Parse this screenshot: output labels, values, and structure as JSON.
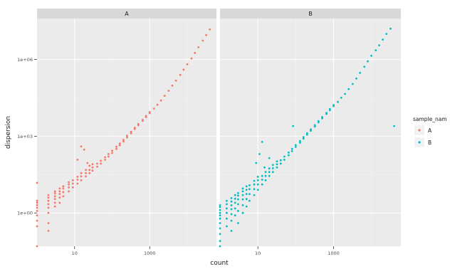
{
  "chart_data": {
    "type": "scatter",
    "facet_by": "sample_name",
    "xlabel": "count",
    "ylabel": "dispersion",
    "x_scale": "log10",
    "y_scale": "log10",
    "x_ticks": [
      10,
      1000
    ],
    "x_tick_labels": [
      "10",
      "1000"
    ],
    "y_ticks": [
      1,
      1000,
      1000000
    ],
    "y_tick_labels": [
      "1e+00",
      "1e+03",
      "1e+06"
    ],
    "xlim": [
      1,
      60000
    ],
    "ylim": [
      0.05,
      40000000
    ],
    "grid": true,
    "legend": {
      "title": "sample_nam",
      "position": "right",
      "entries": [
        {
          "label": "A",
          "color": "#F8766D"
        },
        {
          "label": "B",
          "color": "#00BFC4"
        }
      ]
    },
    "panels": [
      {
        "strip": "A",
        "color": "#F8766D",
        "points": [
          {
            "x": 1.0,
            "y": 0.3
          },
          {
            "x": 1.0,
            "y": 0.5
          },
          {
            "x": 1.0,
            "y": 0.8
          },
          {
            "x": 1.0,
            "y": 1.2
          },
          {
            "x": 1.0,
            "y": 1.6
          },
          {
            "x": 1.0,
            "y": 2.0
          },
          {
            "x": 1.0,
            "y": 2.5
          },
          {
            "x": 1.0,
            "y": 3.0
          },
          {
            "x": 1.0,
            "y": 15
          },
          {
            "x": 1.0,
            "y": 0.05
          },
          {
            "x": 2.0,
            "y": 0.4
          },
          {
            "x": 2.0,
            "y": 1.0
          },
          {
            "x": 2.0,
            "y": 1.6
          },
          {
            "x": 2.0,
            "y": 2.2
          },
          {
            "x": 2.0,
            "y": 3.0
          },
          {
            "x": 2.0,
            "y": 4.0
          },
          {
            "x": 2.0,
            "y": 5.0
          },
          {
            "x": 2.0,
            "y": 0.2
          },
          {
            "x": 3.0,
            "y": 1.8
          },
          {
            "x": 3.0,
            "y": 2.5
          },
          {
            "x": 3.0,
            "y": 3.5
          },
          {
            "x": 3.0,
            "y": 4.5
          },
          {
            "x": 3.0,
            "y": 5.8
          },
          {
            "x": 3.0,
            "y": 7.0
          },
          {
            "x": 4.0,
            "y": 2.5
          },
          {
            "x": 4.0,
            "y": 4.0
          },
          {
            "x": 4.0,
            "y": 5.5
          },
          {
            "x": 4.0,
            "y": 7.0
          },
          {
            "x": 4.0,
            "y": 9.0
          },
          {
            "x": 5.0,
            "y": 4.5
          },
          {
            "x": 5.0,
            "y": 6.5
          },
          {
            "x": 5.0,
            "y": 9.0
          },
          {
            "x": 5.0,
            "y": 11
          },
          {
            "x": 7.0,
            "y": 7.0
          },
          {
            "x": 7.0,
            "y": 10
          },
          {
            "x": 7.0,
            "y": 13
          },
          {
            "x": 7.0,
            "y": 16
          },
          {
            "x": 9.0,
            "y": 10
          },
          {
            "x": 9.0,
            "y": 14
          },
          {
            "x": 9.0,
            "y": 19
          },
          {
            "x": 12,
            "y": 14
          },
          {
            "x": 12,
            "y": 20
          },
          {
            "x": 12,
            "y": 26
          },
          {
            "x": 15,
            "y": 19
          },
          {
            "x": 15,
            "y": 27
          },
          {
            "x": 15,
            "y": 36
          },
          {
            "x": 20,
            "y": 27
          },
          {
            "x": 20,
            "y": 36
          },
          {
            "x": 20,
            "y": 48
          },
          {
            "x": 25,
            "y": 36
          },
          {
            "x": 25,
            "y": 48
          },
          {
            "x": 25,
            "y": 70
          },
          {
            "x": 30,
            "y": 45
          },
          {
            "x": 30,
            "y": 60
          },
          {
            "x": 30,
            "y": 80
          },
          {
            "x": 40,
            "y": 65
          },
          {
            "x": 40,
            "y": 85
          },
          {
            "x": 50,
            "y": 85
          },
          {
            "x": 50,
            "y": 110
          },
          {
            "x": 65,
            "y": 120
          },
          {
            "x": 65,
            "y": 150
          },
          {
            "x": 80,
            "y": 160
          },
          {
            "x": 80,
            "y": 200
          },
          {
            "x": 100,
            "y": 220
          },
          {
            "x": 100,
            "y": 270
          },
          {
            "x": 130,
            "y": 320
          },
          {
            "x": 130,
            "y": 390
          },
          {
            "x": 160,
            "y": 440
          },
          {
            "x": 160,
            "y": 520
          },
          {
            "x": 200,
            "y": 620
          },
          {
            "x": 200,
            "y": 720
          },
          {
            "x": 250,
            "y": 900
          },
          {
            "x": 250,
            "y": 1050
          },
          {
            "x": 320,
            "y": 1300
          },
          {
            "x": 320,
            "y": 1500
          },
          {
            "x": 400,
            "y": 1900
          },
          {
            "x": 400,
            "y": 2150
          },
          {
            "x": 500,
            "y": 2700
          },
          {
            "x": 500,
            "y": 3000
          },
          {
            "x": 650,
            "y": 4000
          },
          {
            "x": 650,
            "y": 4400
          },
          {
            "x": 800,
            "y": 5600
          },
          {
            "x": 800,
            "y": 6200
          },
          {
            "x": 1000,
            "y": 8000
          },
          {
            "x": 1000,
            "y": 8800
          },
          {
            "x": 1300,
            "y": 12000
          },
          {
            "x": 1600,
            "y": 17000
          },
          {
            "x": 2000,
            "y": 25000
          },
          {
            "x": 2500,
            "y": 38000
          },
          {
            "x": 3200,
            "y": 60000
          },
          {
            "x": 4000,
            "y": 95000
          },
          {
            "x": 5000,
            "y": 150000
          },
          {
            "x": 6500,
            "y": 250000
          },
          {
            "x": 8000,
            "y": 400000
          },
          {
            "x": 10000,
            "y": 650000
          },
          {
            "x": 13000,
            "y": 1100000
          },
          {
            "x": 16000,
            "y": 1800000
          },
          {
            "x": 20000,
            "y": 3000000
          },
          {
            "x": 26000,
            "y": 5500000
          },
          {
            "x": 32000,
            "y": 9000000
          },
          {
            "x": 40000,
            "y": 15000000
          },
          {
            "x": 15,
            "y": 400
          },
          {
            "x": 18,
            "y": 300
          },
          {
            "x": 12,
            "y": 120
          },
          {
            "x": 22,
            "y": 90
          }
        ]
      },
      {
        "strip": "B",
        "color": "#00BFC4",
        "points": [
          {
            "x": 1.0,
            "y": 0.08
          },
          {
            "x": 1.0,
            "y": 0.15
          },
          {
            "x": 1.0,
            "y": 0.25
          },
          {
            "x": 1.0,
            "y": 0.4
          },
          {
            "x": 1.0,
            "y": 0.6
          },
          {
            "x": 1.0,
            "y": 0.8
          },
          {
            "x": 1.0,
            "y": 1.0
          },
          {
            "x": 1.0,
            "y": 1.3
          },
          {
            "x": 1.0,
            "y": 1.7
          },
          {
            "x": 1.0,
            "y": 2.0
          },
          {
            "x": 1.0,
            "y": 0.05
          },
          {
            "x": 1.5,
            "y": 0.3
          },
          {
            "x": 1.5,
            "y": 0.6
          },
          {
            "x": 1.5,
            "y": 1.0
          },
          {
            "x": 1.5,
            "y": 1.5
          },
          {
            "x": 1.5,
            "y": 2.2
          },
          {
            "x": 1.5,
            "y": 3.0
          },
          {
            "x": 2.0,
            "y": 0.2
          },
          {
            "x": 2.0,
            "y": 0.5
          },
          {
            "x": 2.0,
            "y": 0.9
          },
          {
            "x": 2.0,
            "y": 1.4
          },
          {
            "x": 2.0,
            "y": 2.0
          },
          {
            "x": 2.0,
            "y": 2.8
          },
          {
            "x": 2.0,
            "y": 3.8
          },
          {
            "x": 2.5,
            "y": 0.8
          },
          {
            "x": 2.5,
            "y": 1.5
          },
          {
            "x": 2.5,
            "y": 2.5
          },
          {
            "x": 2.5,
            "y": 3.6
          },
          {
            "x": 2.5,
            "y": 5.0
          },
          {
            "x": 3.0,
            "y": 0.4
          },
          {
            "x": 3.0,
            "y": 1.2
          },
          {
            "x": 3.0,
            "y": 2.2
          },
          {
            "x": 3.0,
            "y": 3.4
          },
          {
            "x": 3.0,
            "y": 4.8
          },
          {
            "x": 3.0,
            "y": 6.0
          },
          {
            "x": 4.0,
            "y": 1.0
          },
          {
            "x": 4.0,
            "y": 2.0
          },
          {
            "x": 4.0,
            "y": 3.4
          },
          {
            "x": 4.0,
            "y": 5.0
          },
          {
            "x": 4.0,
            "y": 7.0
          },
          {
            "x": 4.0,
            "y": 9.0
          },
          {
            "x": 5.0,
            "y": 1.8
          },
          {
            "x": 5.0,
            "y": 3.5
          },
          {
            "x": 5.0,
            "y": 5.5
          },
          {
            "x": 5.0,
            "y": 8.0
          },
          {
            "x": 5.0,
            "y": 11
          },
          {
            "x": 6.0,
            "y": 3.0
          },
          {
            "x": 6.0,
            "y": 5.5
          },
          {
            "x": 6.0,
            "y": 8.5
          },
          {
            "x": 6.0,
            "y": 12
          },
          {
            "x": 8.0,
            "y": 5.0
          },
          {
            "x": 8.0,
            "y": 8.5
          },
          {
            "x": 8.0,
            "y": 13
          },
          {
            "x": 8.0,
            "y": 18
          },
          {
            "x": 10,
            "y": 8.0
          },
          {
            "x": 10,
            "y": 13
          },
          {
            "x": 10,
            "y": 19
          },
          {
            "x": 10,
            "y": 26
          },
          {
            "x": 13,
            "y": 13
          },
          {
            "x": 13,
            "y": 20
          },
          {
            "x": 13,
            "y": 28
          },
          {
            "x": 16,
            "y": 19
          },
          {
            "x": 16,
            "y": 28
          },
          {
            "x": 16,
            "y": 40
          },
          {
            "x": 20,
            "y": 28
          },
          {
            "x": 20,
            "y": 40
          },
          {
            "x": 20,
            "y": 55
          },
          {
            "x": 25,
            "y": 40
          },
          {
            "x": 25,
            "y": 56
          },
          {
            "x": 25,
            "y": 75
          },
          {
            "x": 32,
            "y": 60
          },
          {
            "x": 32,
            "y": 80
          },
          {
            "x": 32,
            "y": 105
          },
          {
            "x": 40,
            "y": 85
          },
          {
            "x": 40,
            "y": 115
          },
          {
            "x": 50,
            "y": 120
          },
          {
            "x": 50,
            "y": 160
          },
          {
            "x": 65,
            "y": 180
          },
          {
            "x": 65,
            "y": 230
          },
          {
            "x": 80,
            "y": 260
          },
          {
            "x": 80,
            "y": 320
          },
          {
            "x": 100,
            "y": 380
          },
          {
            "x": 100,
            "y": 450
          },
          {
            "x": 130,
            "y": 560
          },
          {
            "x": 130,
            "y": 650
          },
          {
            "x": 160,
            "y": 800
          },
          {
            "x": 160,
            "y": 920
          },
          {
            "x": 200,
            "y": 1150
          },
          {
            "x": 200,
            "y": 1300
          },
          {
            "x": 250,
            "y": 1650
          },
          {
            "x": 250,
            "y": 1850
          },
          {
            "x": 320,
            "y": 2400
          },
          {
            "x": 320,
            "y": 2700
          },
          {
            "x": 400,
            "y": 3500
          },
          {
            "x": 400,
            "y": 3900
          },
          {
            "x": 500,
            "y": 5000
          },
          {
            "x": 500,
            "y": 5600
          },
          {
            "x": 650,
            "y": 7500
          },
          {
            "x": 650,
            "y": 8200
          },
          {
            "x": 800,
            "y": 10500
          },
          {
            "x": 800,
            "y": 11500
          },
          {
            "x": 1000,
            "y": 15000
          },
          {
            "x": 1000,
            "y": 16500
          },
          {
            "x": 1300,
            "y": 22000
          },
          {
            "x": 1600,
            "y": 32000
          },
          {
            "x": 2000,
            "y": 45000
          },
          {
            "x": 2500,
            "y": 70000
          },
          {
            "x": 3200,
            "y": 110000
          },
          {
            "x": 4000,
            "y": 180000
          },
          {
            "x": 5000,
            "y": 300000
          },
          {
            "x": 6500,
            "y": 520000
          },
          {
            "x": 8000,
            "y": 850000
          },
          {
            "x": 10000,
            "y": 1400000
          },
          {
            "x": 13000,
            "y": 2300000
          },
          {
            "x": 16000,
            "y": 3600000
          },
          {
            "x": 20000,
            "y": 6000000
          },
          {
            "x": 25000,
            "y": 10000000
          },
          {
            "x": 32000,
            "y": 16000000
          },
          {
            "x": 11,
            "y": 200
          },
          {
            "x": 13,
            "y": 600
          },
          {
            "x": 20,
            "y": 140
          },
          {
            "x": 85,
            "y": 2500
          },
          {
            "x": 40000,
            "y": 2500
          },
          {
            "x": 9,
            "y": 90
          },
          {
            "x": 15,
            "y": 60
          }
        ]
      }
    ]
  }
}
